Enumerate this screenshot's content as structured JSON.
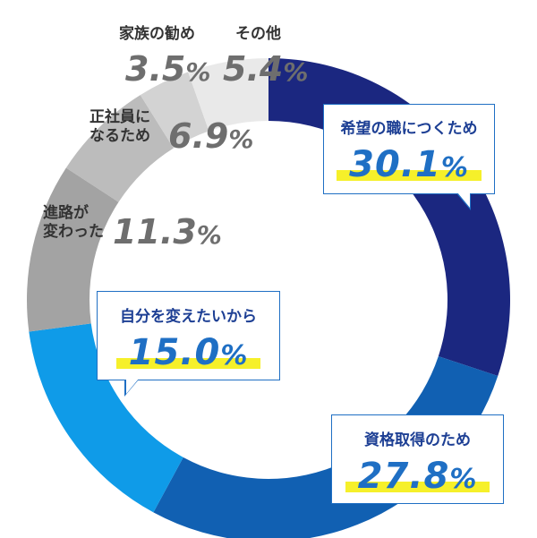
{
  "chart_data": {
    "type": "donut",
    "start": "top, clockwise",
    "segments": [
      {
        "name": "希望の職につくため",
        "value": 30.1,
        "value_label": "30.1",
        "color": "#1b2780"
      },
      {
        "name": "資格取得のため",
        "value": 27.8,
        "value_label": "27.8",
        "color": "#1160b2"
      },
      {
        "name": "自分を変えたいから",
        "value": 15.0,
        "value_label": "15.0",
        "color": "#0f9be8"
      },
      {
        "name": "進路が変わった",
        "value": 11.3,
        "value_label": "11.3",
        "color": "#a3a3a3"
      },
      {
        "name": "正社員になるため",
        "value": 6.9,
        "value_label": "6.9",
        "color": "#bcbcbc"
      },
      {
        "name": "家族の勧め",
        "value": 3.5,
        "value_label": "3.5",
        "color": "#d3d3d3"
      },
      {
        "name": "その他",
        "value": 5.4,
        "value_label": "5.4",
        "color": "#e9e9e9"
      }
    ],
    "unit": "%"
  },
  "labels": {
    "s0": {
      "name": "希望の職につくため",
      "value": "30.1"
    },
    "s1": {
      "name": "資格取得のため",
      "value": "27.8"
    },
    "s2": {
      "name": "自分を変えたいから",
      "value": "15.0"
    },
    "s3": {
      "name_line1": "進路が",
      "name_line2": "変わった",
      "value": "11.3"
    },
    "s4": {
      "name_line1": "正社員に",
      "name_line2": "なるため",
      "value": "6.9"
    },
    "s5": {
      "name": "家族の勧め",
      "value": "3.5"
    },
    "s6": {
      "name": "その他",
      "value": "5.4"
    },
    "unit": "%"
  }
}
